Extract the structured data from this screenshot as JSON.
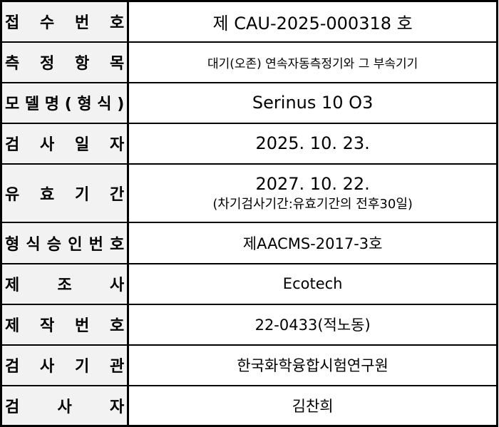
{
  "rows": [
    {
      "label": "접 수 번 호",
      "value": "제 CAU-2025-000318 호"
    },
    {
      "label": "측 정 항 목",
      "value": "대기(오존) 연속자동측정기와 그 부속기기"
    },
    {
      "label": "모 델 명 ( 형 식 )",
      "value": "Serinus 10 O3"
    },
    {
      "label": "검 사 일 자",
      "value": "2025. 10. 23."
    },
    {
      "label": "유 효 기 간",
      "value": "2027. 10. 22.",
      "note": "(차기검사기간:유효기간의 전후30일)"
    },
    {
      "label": "형 식 승 인 번 호",
      "value": "제AACMS-2017-3호"
    },
    {
      "label": "제 조 사",
      "value": "Ecotech"
    },
    {
      "label": "제 작 번 호",
      "value": "22-0433(적노동)"
    },
    {
      "label": "검 사 기 관",
      "value": "한국화학융합시험연구원"
    },
    {
      "label": "검 사 자",
      "value": "김찬희"
    }
  ]
}
